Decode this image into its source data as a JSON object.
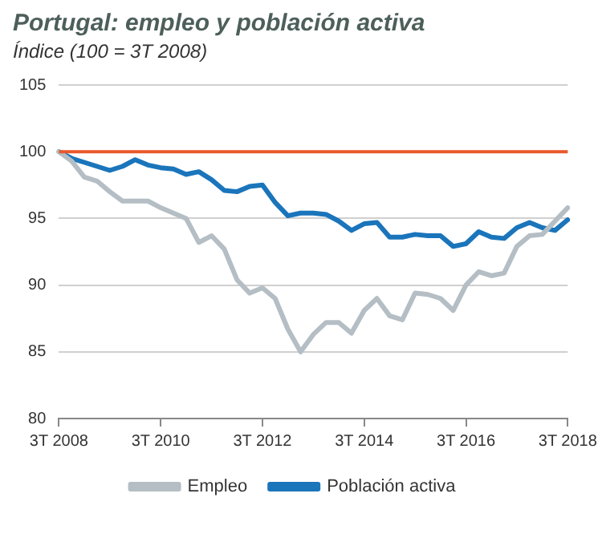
{
  "chart_data": {
    "type": "line",
    "title": "Portugal: empleo y población activa",
    "subtitle": "Índice (100 = 3T 2008)",
    "categories": [
      "3T 2008",
      null,
      null,
      null,
      null,
      null,
      null,
      null,
      "3T 2010",
      null,
      null,
      null,
      null,
      null,
      null,
      null,
      "3T 2012",
      null,
      null,
      null,
      null,
      null,
      null,
      null,
      "3T 2014",
      null,
      null,
      null,
      null,
      null,
      null,
      null,
      "3T 2016",
      null,
      null,
      null,
      null,
      null,
      null,
      null,
      "3T 2018"
    ],
    "series": [
      {
        "name": "Empleo",
        "color": "#b4bec4",
        "values": [
          100,
          99.3,
          98.1,
          97.8,
          97.0,
          96.3,
          96.3,
          96.3,
          95.8,
          95.4,
          95.0,
          93.2,
          93.7,
          92.7,
          90.4,
          89.4,
          89.8,
          89.0,
          86.7,
          85.0,
          86.3,
          87.2,
          87.2,
          86.4,
          88.1,
          89.0,
          87.7,
          87.4,
          89.4,
          89.3,
          89.0,
          88.1,
          90.0,
          91.0,
          90.7,
          90.9,
          92.9,
          93.7,
          93.8,
          94.8,
          95.8
        ]
      },
      {
        "name": "Población activa",
        "color": "#1a75bb",
        "values": [
          100,
          99.5,
          99.2,
          98.9,
          98.6,
          98.9,
          99.4,
          99.0,
          98.8,
          98.7,
          98.3,
          98.5,
          97.9,
          97.1,
          97.0,
          97.4,
          97.5,
          96.2,
          95.2,
          95.4,
          95.4,
          95.3,
          94.8,
          94.1,
          94.6,
          94.7,
          93.6,
          93.6,
          93.8,
          93.7,
          93.7,
          92.9,
          93.1,
          94.0,
          93.6,
          93.5,
          94.3,
          94.7,
          94.3,
          94.1,
          94.9
        ]
      }
    ],
    "ylim": [
      80,
      105
    ],
    "yticks": [
      80,
      85,
      90,
      95,
      100,
      105
    ],
    "grid": "y",
    "legend": "bottom",
    "marker": "none",
    "line_style": "solid",
    "ref_lines": [
      {
        "axis": "y",
        "value": 100,
        "label": null,
        "color": "#e8582a"
      }
    ]
  }
}
